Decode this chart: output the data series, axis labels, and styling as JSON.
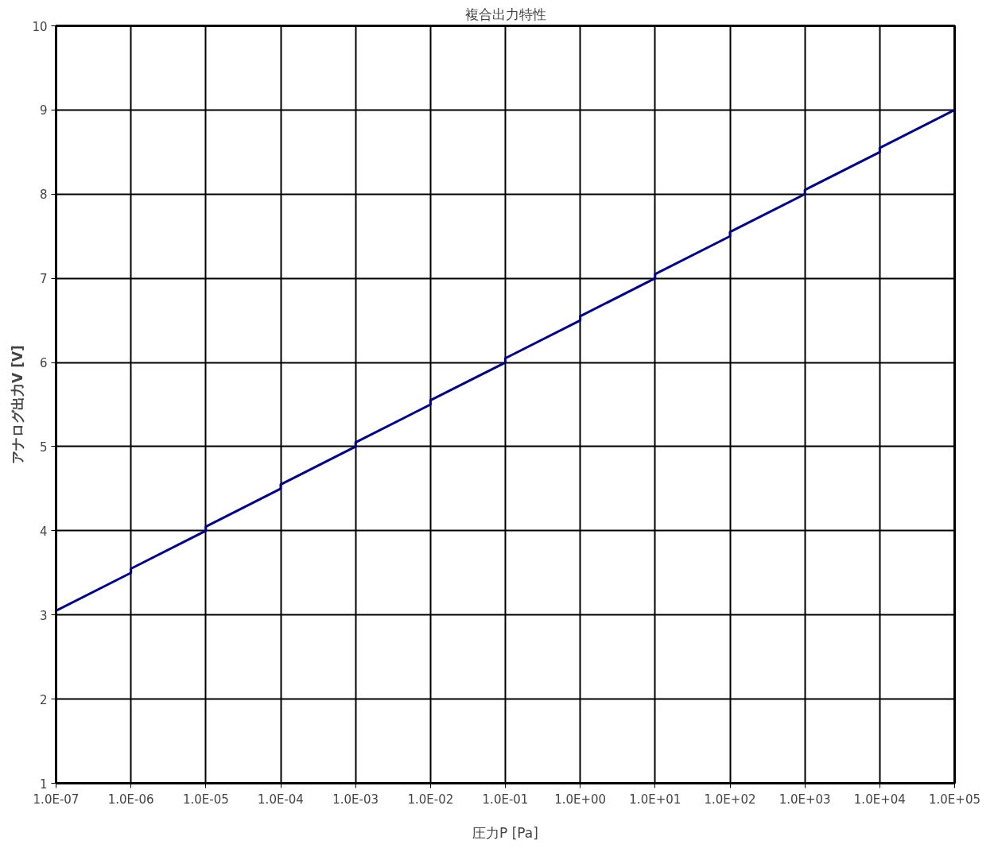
{
  "chart_data": {
    "type": "line",
    "title": "複合出力特性",
    "xlabel": "圧力P [Pa]",
    "ylabel": "アナログ出力V [V]",
    "log": "x",
    "grid": true,
    "marker": "none",
    "line_style": "solid",
    "x": [
      1e-07,
      1e-06,
      1e-06,
      1e-05,
      1e-05,
      0.0001,
      0.0001,
      0.001,
      0.001,
      0.01,
      0.01,
      0.1,
      0.1,
      1.0,
      1.0,
      10.0,
      10.0,
      100.0,
      100.0,
      1000.0,
      1000.0,
      10000.0,
      10000.0,
      100000.0
    ],
    "series": [
      {
        "color": "#000080",
        "values": [
          3.05,
          3.5,
          3.55,
          4.0,
          4.05,
          4.5,
          4.55,
          5.0,
          5.05,
          5.5,
          5.55,
          6.0,
          6.05,
          6.5,
          6.55,
          7.0,
          7.05,
          7.5,
          7.55,
          8.0,
          8.05,
          8.5,
          8.55,
          9.0
        ]
      }
    ],
    "xlim": [
      1e-07,
      100000.0
    ],
    "ylim": [
      1,
      10
    ],
    "xticks": [
      {
        "value": 1e-07,
        "label": "1.0E-07"
      },
      {
        "value": 1e-06,
        "label": "1.0E-06"
      },
      {
        "value": 1e-05,
        "label": "1.0E-05"
      },
      {
        "value": 0.0001,
        "label": "1.0E-04"
      },
      {
        "value": 0.001,
        "label": "1.0E-03"
      },
      {
        "value": 0.01,
        "label": "1.0E-02"
      },
      {
        "value": 0.1,
        "label": "1.0E-01"
      },
      {
        "value": 1.0,
        "label": "1.0E+00"
      },
      {
        "value": 10.0,
        "label": "1.0E+01"
      },
      {
        "value": 100.0,
        "label": "1.0E+02"
      },
      {
        "value": 1000.0,
        "label": "1.0E+03"
      },
      {
        "value": 10000.0,
        "label": "1.0E+04"
      },
      {
        "value": 100000.0,
        "label": "1.0E+05"
      }
    ],
    "yticks": [
      1,
      2,
      3,
      4,
      5,
      6,
      7,
      8,
      9,
      10
    ]
  }
}
